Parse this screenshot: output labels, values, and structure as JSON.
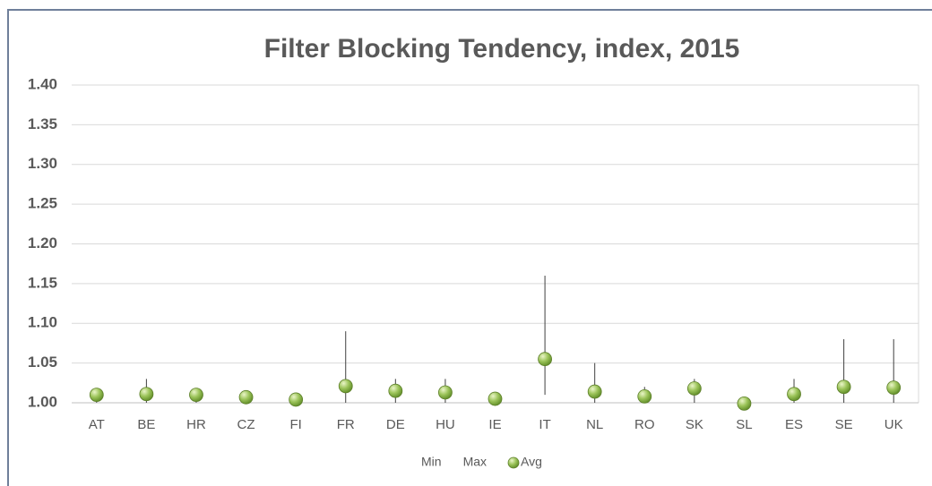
{
  "chart_data": {
    "type": "high-low",
    "title": "Filter Blocking Tendency, index, 2015",
    "categories": [
      "AT",
      "BE",
      "HR",
      "CZ",
      "FI",
      "FR",
      "DE",
      "HU",
      "IE",
      "IT",
      "NL",
      "RO",
      "SK",
      "SL",
      "ES",
      "SE",
      "UK"
    ],
    "series": [
      {
        "name": "Min",
        "color": "#404040",
        "values": [
          1.0,
          1.0,
          1.0,
          1.0,
          1.0,
          1.0,
          1.0,
          1.0,
          1.0,
          1.01,
          1.0,
          1.0,
          1.0,
          1.0,
          1.0,
          1.0,
          1.0
        ]
      },
      {
        "name": "Max",
        "color": "#404040",
        "values": [
          1.01,
          1.03,
          1.01,
          1.01,
          1.01,
          1.09,
          1.03,
          1.03,
          1.01,
          1.16,
          1.05,
          1.02,
          1.03,
          1.0,
          1.03,
          1.08,
          1.08
        ]
      },
      {
        "name": "Avg",
        "color": "#8db84a",
        "values": [
          1.01,
          1.011,
          1.01,
          1.007,
          1.004,
          1.021,
          1.015,
          1.013,
          1.005,
          1.055,
          1.014,
          1.008,
          1.018,
          0.999,
          1.011,
          1.02,
          1.019
        ]
      }
    ],
    "ylim": [
      1,
      1.4
    ],
    "yticks": [
      {
        "value": 1,
        "label": "1.00"
      },
      {
        "value": 1.05,
        "label": "1.05"
      },
      {
        "value": 1.1,
        "label": "1.10"
      },
      {
        "value": 1.15,
        "label": "1.15"
      },
      {
        "value": 1.2,
        "label": "1.20"
      },
      {
        "value": 1.25,
        "label": "1.25"
      },
      {
        "value": 1.3,
        "label": "1.30"
      },
      {
        "value": 1.35,
        "label": "1.35"
      },
      {
        "value": 1.4,
        "label": "1.40"
      }
    ],
    "grid": true,
    "legend": "bottom"
  }
}
